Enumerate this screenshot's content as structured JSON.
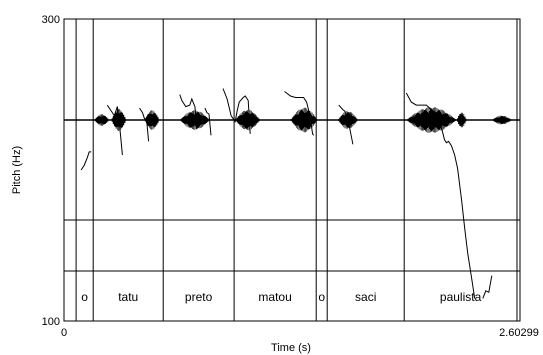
{
  "chart_data": {
    "type": "line",
    "title": "",
    "xlabel": "Time (s)",
    "ylabel": "Pitch (Hz)",
    "xlim": [
      0,
      2.60299
    ],
    "ylim": [
      100,
      300
    ],
    "x_tick_labels": [
      "0",
      "2.60299"
    ],
    "y_tick_labels": [
      "300",
      "100"
    ],
    "grid": false,
    "segment_boundaries": [
      0.12,
      0.29,
      0.985,
      1.69,
      2.505,
      2.615,
      3.38,
      4.5
    ],
    "segments": [
      {
        "label": "o",
        "start": 0.12,
        "end": 0.29
      },
      {
        "label": "tatu",
        "start": 0.29,
        "end": 0.985
      },
      {
        "label": "preto",
        "start": 0.985,
        "end": 1.69
      },
      {
        "label": "matou",
        "start": 1.69,
        "end": 2.505
      },
      {
        "label": "o",
        "start": 2.505,
        "end": 2.615
      },
      {
        "label": "saci",
        "start": 2.615,
        "end": 3.38
      },
      {
        "label": "paulista",
        "start": 3.38,
        "end": 4.5
      }
    ],
    "waveform_bursts": [
      {
        "start": 0.3,
        "end": 0.45,
        "amp": 0.45
      },
      {
        "start": 0.47,
        "end": 0.62,
        "amp": 0.85
      },
      {
        "start": 0.8,
        "end": 0.95,
        "amp": 0.75
      },
      {
        "start": 1.15,
        "end": 1.45,
        "amp": 0.75
      },
      {
        "start": 1.7,
        "end": 1.95,
        "amp": 0.8
      },
      {
        "start": 2.25,
        "end": 2.52,
        "amp": 0.95
      },
      {
        "start": 2.72,
        "end": 2.92,
        "amp": 0.7
      },
      {
        "start": 3.4,
        "end": 3.9,
        "amp": 1.0
      },
      {
        "start": 3.9,
        "end": 4.0,
        "amp": 0.6
      },
      {
        "start": 4.25,
        "end": 4.45,
        "amp": 0.35
      }
    ],
    "series": [
      {
        "x": [
          0.17,
          0.2,
          0.23,
          0.25,
          0.27
        ],
        "y": [
          200,
          203,
          208,
          212,
          212
        ]
      },
      {
        "x": [
          0.43,
          0.47,
          0.5,
          0.51,
          0.53,
          0.54,
          0.56,
          0.58
        ],
        "y": [
          243,
          239,
          236,
          238,
          242,
          236,
          224,
          210
        ]
      },
      {
        "x": [
          0.75,
          0.78,
          0.8,
          0.82,
          0.84
        ],
        "y": [
          241,
          238,
          234,
          234,
          219
        ]
      },
      {
        "x": [
          1.15,
          1.17,
          1.21,
          1.25,
          1.27,
          1.3,
          1.32
        ],
        "y": [
          250,
          246,
          242,
          243,
          247,
          242,
          227
        ]
      },
      {
        "x": [
          1.4,
          1.42,
          1.44,
          1.46
        ],
        "y": [
          241,
          238,
          237,
          223
        ]
      },
      {
        "x": [
          1.58,
          1.62,
          1.66,
          1.7,
          1.72,
          1.74,
          1.78,
          1.8,
          1.83,
          1.85
        ],
        "y": [
          254,
          247,
          236,
          232,
          239,
          245,
          248,
          249,
          246,
          224
        ]
      },
      {
        "x": [
          2.19,
          2.25,
          2.3,
          2.34,
          2.38,
          2.41,
          2.44,
          2.47,
          2.48
        ],
        "y": [
          252,
          249,
          248,
          248,
          248,
          245,
          237,
          224,
          223
        ]
      },
      {
        "x": [
          2.73,
          2.77,
          2.79,
          2.81,
          2.82,
          2.84,
          2.87
        ],
        "y": [
          243,
          240,
          239,
          235,
          233,
          227,
          217
        ]
      },
      {
        "x": [
          3.4,
          3.45,
          3.5,
          3.56,
          3.6,
          3.65,
          3.69,
          3.72,
          3.75,
          3.78,
          3.8,
          3.82,
          3.85,
          3.88,
          3.91,
          3.95,
          3.98,
          4.01,
          4.05,
          4.08
        ],
        "y": [
          251,
          245,
          243,
          243,
          243,
          240,
          238,
          233,
          228,
          220,
          218,
          219,
          216,
          210,
          201,
          180,
          162,
          145,
          128,
          115
        ]
      },
      {
        "x": [
          4.16,
          4.19,
          4.22,
          4.25
        ],
        "y": [
          115,
          120,
          119,
          130
        ]
      }
    ]
  }
}
